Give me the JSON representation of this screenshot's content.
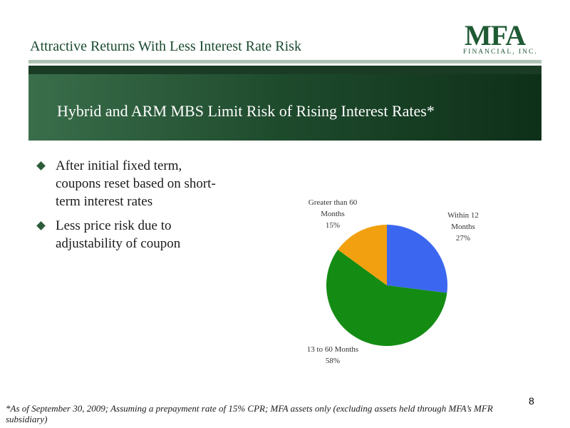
{
  "header": {
    "title": "Attractive Returns With Less Interest Rate Risk"
  },
  "logo": {
    "mark": "MFA",
    "subtitle": "FINANCIAL, INC."
  },
  "banner": {
    "title": "Hybrid and ARM MBS Limit Risk of Rising Interest Rates*"
  },
  "bullets": [
    {
      "text": "After initial fixed term, coupons reset based on short-term interest rates"
    },
    {
      "text": "Less price risk due to adjustability of coupon"
    }
  ],
  "chart_data": {
    "type": "pie",
    "title": "",
    "slices": [
      {
        "label": "Within 12 Months",
        "percent_label": "27%",
        "value": 27,
        "color": "#3b67f0"
      },
      {
        "label": "13 to 60 Months",
        "percent_label": "58%",
        "value": 58,
        "color": "#148c14"
      },
      {
        "label": "Greater than 60 Months",
        "percent_label": "15%",
        "value": 15,
        "color": "#f2a010"
      }
    ],
    "legend": "none"
  },
  "page_number": "8",
  "footnote": "*As of September 30, 2009; Assuming a prepayment rate of 15% CPR; MFA assets only (excluding assets held through MFA’s MFR subsidiary)"
}
